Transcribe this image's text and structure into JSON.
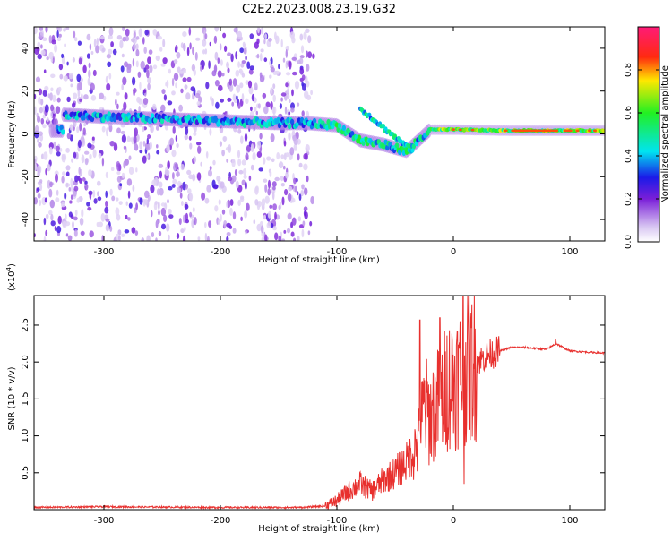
{
  "title": "C2E2.2023.008.23.19.G32",
  "chart_data": [
    {
      "type": "heatmap",
      "xlabel": "Height of straight line (km)",
      "ylabel": "Frequency (Hz)",
      "xlim": [
        -360,
        130
      ],
      "ylim": [
        -50,
        50
      ],
      "xticks": [
        -300,
        -200,
        -100,
        0,
        100
      ],
      "yticks": [
        -40,
        -20,
        0,
        20,
        40
      ],
      "colorbar": {
        "label": "Normalized spectral amplitude",
        "range": [
          0,
          1
        ],
        "ticks": [
          "0.0",
          "0.2",
          "0.4",
          "0.6",
          "0.8"
        ]
      },
      "ridge": {
        "x": [
          -335,
          -300,
          -250,
          -200,
          -150,
          -125,
          -100,
          -80,
          -60,
          -40,
          -20,
          0,
          50,
          100,
          130
        ],
        "y": [
          9,
          8,
          7,
          6,
          5,
          5,
          4,
          -3,
          -5,
          -8,
          2,
          2,
          1.5,
          1.5,
          1.5
        ]
      }
    },
    {
      "type": "line",
      "xlabel": "Height of straight line (km)",
      "ylabel": "SNR (10 * v/v)",
      "yscale_label": "(x10",
      "yscale_exp": "4",
      "xlim": [
        -360,
        130
      ],
      "ylim": [
        0,
        2.9
      ],
      "xticks": [
        -300,
        -200,
        -100,
        0,
        100
      ],
      "yticks": [
        "0.5",
        "1.0",
        "1.5",
        "2.0",
        "2.5"
      ],
      "color": "#e8302e",
      "series": {
        "x": [
          -360,
          -300,
          -200,
          -130,
          -110,
          -100,
          -90,
          -80,
          -70,
          -60,
          -50,
          -40,
          -30,
          -25,
          -20,
          -15,
          -10,
          -5,
          0,
          5,
          10,
          20,
          30,
          40,
          50,
          60,
          80,
          88,
          100,
          130
        ],
        "y": [
          0.03,
          0.04,
          0.03,
          0.03,
          0.05,
          0.12,
          0.25,
          0.35,
          0.25,
          0.4,
          0.5,
          0.65,
          0.9,
          1.4,
          1.25,
          1.4,
          1.5,
          1.7,
          1.75,
          1.8,
          1.9,
          2.0,
          2.1,
          2.15,
          2.2,
          2.2,
          2.17,
          2.25,
          2.15,
          2.12
        ]
      }
    }
  ]
}
